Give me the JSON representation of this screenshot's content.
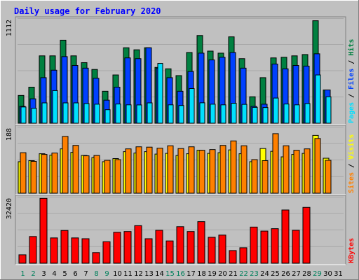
{
  "title": "Daily usage for February 2020",
  "colors": {
    "background": "#c0c0c0",
    "title": "#0000ff",
    "hits": "#008040",
    "files": "#0040ff",
    "pages": "#00e0ff",
    "visits": "#ffff00",
    "sites": "#ff8000",
    "kbytes": "#ff0000",
    "weekday_label": "#000080",
    "weekend_label": "#00805c"
  },
  "chart_data": {
    "type": "bar",
    "title": "Daily usage for February 2020",
    "x": [
      "1",
      "2",
      "3",
      "4",
      "5",
      "6",
      "7",
      "8",
      "9",
      "10",
      "11",
      "12",
      "13",
      "14",
      "15",
      "16",
      "17",
      "18",
      "19",
      "20",
      "21",
      "22",
      "23",
      "24",
      "25",
      "26",
      "27",
      "28",
      "29",
      "30",
      "31"
    ],
    "weekend_days": [
      "1",
      "2",
      "8",
      "9",
      "15",
      "16",
      "22",
      "23",
      "29"
    ],
    "panels": [
      {
        "name": "top",
        "max_label": "1112",
        "ymax": 1112,
        "side_labels": [
          "Pages",
          "Files",
          "Hits"
        ],
        "series": [
          {
            "name": "Hits",
            "values": [
              298,
              387,
              723,
              723,
              891,
              723,
              650,
              577,
              343,
              518,
              810,
              788,
              810,
              599,
              584,
              511,
              759,
              941,
              774,
              752,
              927,
              693,
              284,
              489,
              701,
              708,
              723,
              737,
              1100,
              357,
              null
            ]
          },
          {
            "name": "Files",
            "values": [
              181,
              262,
              489,
              569,
              715,
              620,
              591,
              482,
              247,
              387,
              701,
              693,
              810,
              591,
              489,
              343,
              555,
              752,
              679,
              708,
              759,
              591,
              181,
              204,
              635,
              584,
              620,
              613,
              745,
              357,
              null
            ]
          },
          {
            "name": "Pages",
            "values": [
              174,
              160,
              218,
              350,
              218,
              218,
              211,
              204,
              145,
              206,
              197,
              196,
              218,
              642,
              197,
              190,
              372,
              219,
              204,
              197,
              214,
              202,
              170,
              168,
              270,
              206,
              197,
              211,
              518,
              284,
              null
            ]
          }
        ]
      },
      {
        "name": "middle",
        "max_label": "188",
        "ymax": 188,
        "side_labels": [
          "Sites",
          "Visits"
        ],
        "series": [
          {
            "name": "Visits",
            "values": [
              91,
              94,
              114,
              110,
              128,
              118,
              109,
              103,
              91,
              100,
              120,
              116,
              120,
              113,
              115,
              109,
              114,
              124,
              115,
              117,
              125,
              114,
              91,
              129,
              121,
              105,
              112,
              115,
              167,
              101,
              null
            ]
          },
          {
            "name": "Sites",
            "values": [
              117,
              92,
              112,
              116,
              164,
              138,
              108,
              109,
              95,
              97,
              128,
              134,
              133,
              130,
              137,
              129,
              134,
              124,
              126,
              138,
              151,
              137,
              97,
              94,
              172,
              137,
              124,
              128,
              158,
              95,
              null
            ]
          }
        ]
      },
      {
        "name": "bottom",
        "max_label": "32420",
        "ymax": 32420,
        "side_labels": [
          "KBytes"
        ],
        "series": [
          {
            "name": "KBytes",
            "values": [
              4200,
              13300,
              32300,
              12600,
              16300,
              12600,
              12200,
              5300,
              10700,
              15400,
              15800,
              18700,
              12200,
              16400,
              11100,
              18200,
              15800,
              20700,
              12900,
              14000,
              6300,
              7700,
              18000,
              16000,
              17200,
              26500,
              16400,
              27800,
              0,
              0,
              null
            ]
          }
        ]
      }
    ]
  }
}
